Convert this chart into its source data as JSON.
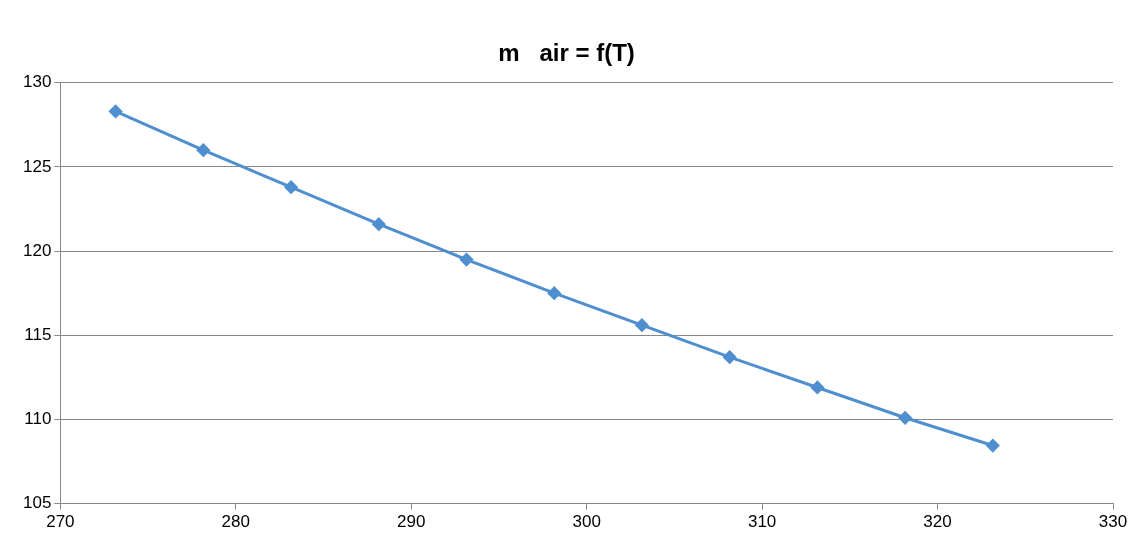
{
  "chart_data": {
    "type": "line",
    "title": "m   air = f(T)",
    "x": [
      273.15,
      278.15,
      283.15,
      288.15,
      293.15,
      298.15,
      303.15,
      308.15,
      313.15,
      318.15,
      323.15
    ],
    "series": [
      {
        "color": "#4f8fd0",
        "values": [
          128.3,
          126.0,
          123.8,
          121.6,
          119.5,
          117.5,
          115.6,
          113.7,
          111.9,
          110.1,
          108.45
        ]
      }
    ],
    "xlim": [
      270,
      330
    ],
    "xticks": [
      270,
      280,
      290,
      300,
      310,
      320,
      330
    ],
    "ylim": [
      105,
      130
    ],
    "yticks": [
      105,
      110,
      115,
      120,
      125,
      130
    ],
    "grid": "y",
    "legend": false,
    "marker": "diamond",
    "line_style": "solid"
  }
}
